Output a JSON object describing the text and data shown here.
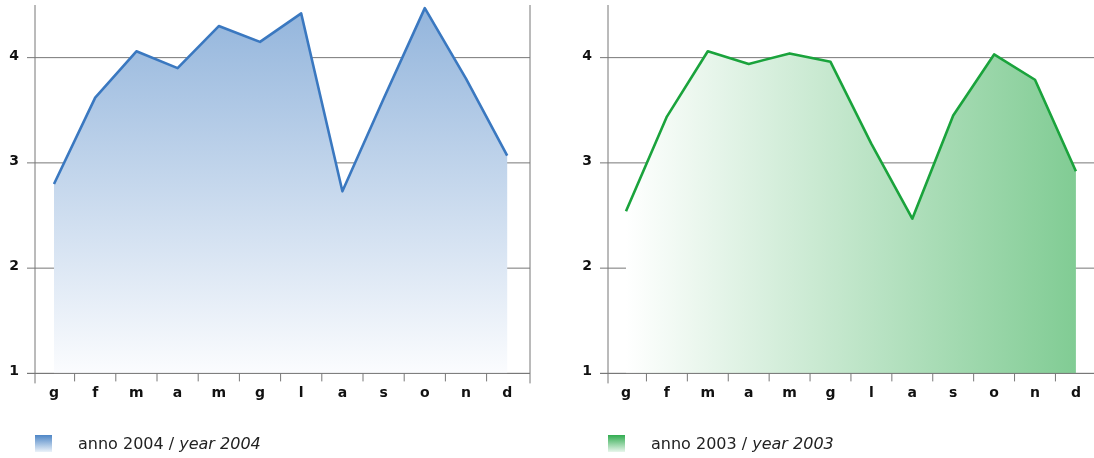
{
  "chart_data": [
    {
      "type": "area",
      "ylim": [
        1,
        4.5
      ],
      "yticks": [
        1,
        2,
        3,
        4
      ],
      "categories": [
        "g",
        "f",
        "m",
        "a",
        "m",
        "g",
        "l",
        "a",
        "s",
        "o",
        "n",
        "d"
      ],
      "grid": "y",
      "legend": "bottom",
      "series": [
        {
          "name": "anno 2004 / year 2004",
          "color": "#3a78c0",
          "values": [
            2.8,
            3.62,
            4.06,
            3.9,
            4.3,
            4.15,
            4.42,
            2.73,
            3.61,
            4.47,
            3.8,
            3.07
          ]
        }
      ]
    },
    {
      "type": "area",
      "ylim": [
        1,
        4.5
      ],
      "yticks": [
        1,
        2,
        3,
        4
      ],
      "categories": [
        "g",
        "f",
        "m",
        "a",
        "m",
        "g",
        "l",
        "a",
        "s",
        "o",
        "n",
        "d"
      ],
      "grid": "y",
      "legend": "bottom",
      "series": [
        {
          "name": "anno 2003 / year 2003",
          "color": "#1aa33c",
          "values": [
            2.54,
            3.44,
            4.06,
            3.94,
            4.04,
            3.96,
            3.18,
            2.47,
            3.45,
            4.03,
            3.79,
            2.92
          ]
        }
      ]
    }
  ]
}
